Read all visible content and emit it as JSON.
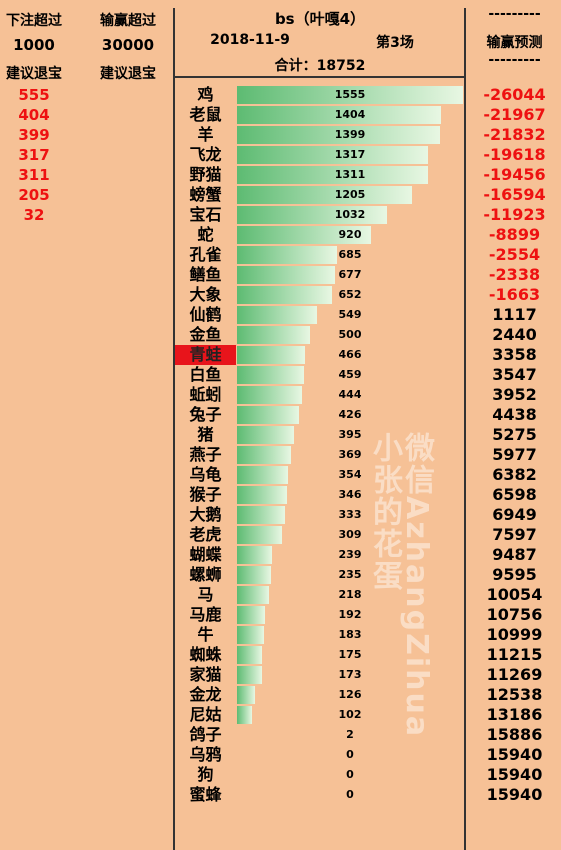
{
  "header": {
    "bet_over_label": "下注超过",
    "bet_over_value": "1000",
    "bet_over_advice": "建议退宝",
    "loss_over_label": "输赢超过",
    "loss_over_value": "30000",
    "loss_over_advice": "建议退宝",
    "title": "bs（叶嘎4）",
    "date": "2018-11-9",
    "round": "第3场",
    "total": "合计：18752",
    "pred_dashes": "---------",
    "pred_title": "输赢预测",
    "pred_dashes2": "---------"
  },
  "stop_suggestions": [
    "555",
    "404",
    "399",
    "317",
    "311",
    "205",
    "32"
  ],
  "watermark": {
    "line1": "微信AzhangZihua",
    "line2": "小张的花蛋"
  },
  "colors": {
    "background": "#f6c196",
    "bar_start": "#5dbb72",
    "bar_end": "#e8f7e3",
    "negative": "#e11111",
    "highlight": "#e8141b"
  },
  "highlight_index": 13,
  "chart_data": {
    "type": "bar",
    "orientation": "horizontal",
    "categories": [
      "鸡",
      "老鼠",
      "羊",
      "飞龙",
      "野猫",
      "螃蟹",
      "宝石",
      "蛇",
      "孔雀",
      "鳝鱼",
      "大象",
      "仙鹤",
      "金鱼",
      "青蛙",
      "白鱼",
      "蚯蚓",
      "兔子",
      "猪",
      "燕子",
      "乌龟",
      "猴子",
      "大鹅",
      "老虎",
      "蝴蝶",
      "螺蛳",
      "马",
      "马鹿",
      "牛",
      "蜘蛛",
      "家猫",
      "金龙",
      "尼姑",
      "鸽子",
      "乌鸦",
      "狗",
      "蜜蜂"
    ],
    "values": [
      1555,
      1404,
      1399,
      1317,
      1311,
      1205,
      1032,
      920,
      685,
      677,
      652,
      549,
      500,
      466,
      459,
      444,
      426,
      395,
      369,
      354,
      346,
      333,
      309,
      239,
      235,
      218,
      192,
      183,
      175,
      173,
      126,
      102,
      2,
      0,
      0,
      0
    ],
    "predictions": [
      "-26044",
      "-21967",
      "-21832",
      "-19618",
      "-19456",
      "-16594",
      "-11923",
      "-8899",
      "-2554",
      "-2338",
      "-1663",
      "1117",
      "2440",
      "3358",
      "3547",
      "3952",
      "4438",
      "5275",
      "5977",
      "6382",
      "6598",
      "6949",
      "7597",
      "9487",
      "9595",
      "10054",
      "10756",
      "10999",
      "11215",
      "11269",
      "12538",
      "13186",
      "15886",
      "15940",
      "15940",
      "15940"
    ],
    "xlim": [
      0,
      1555
    ]
  }
}
